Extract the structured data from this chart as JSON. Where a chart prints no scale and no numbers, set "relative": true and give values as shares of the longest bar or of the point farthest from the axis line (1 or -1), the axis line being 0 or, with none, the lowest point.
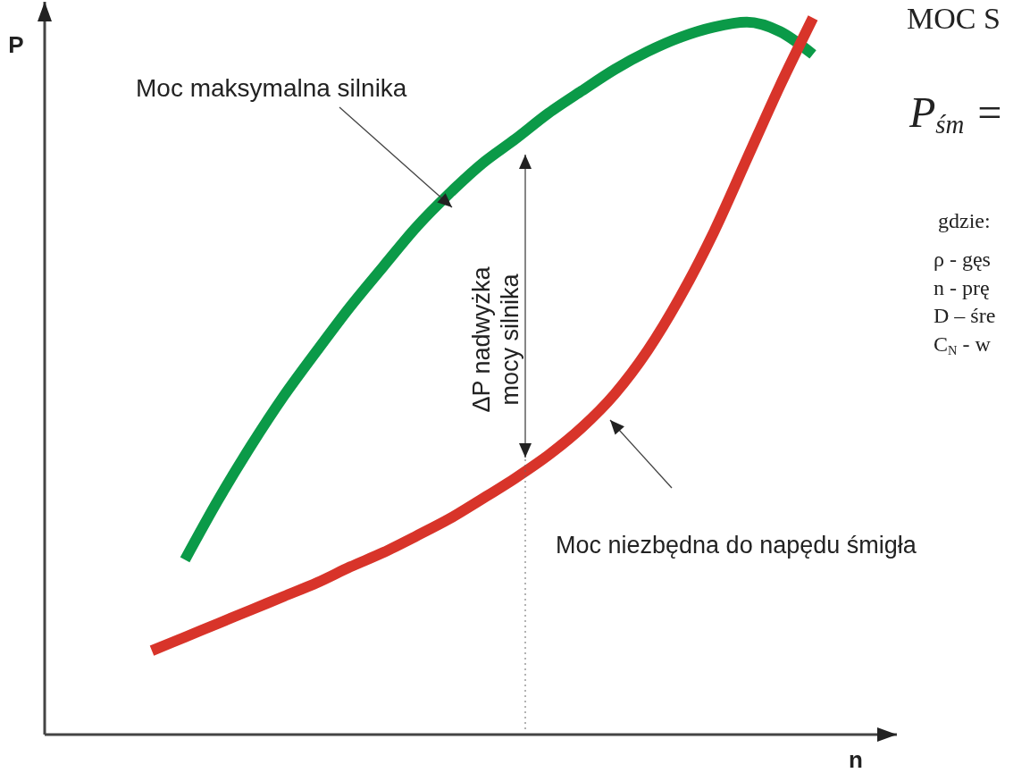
{
  "chart_data": {
    "type": "line",
    "relative": true,
    "xlabel": "n",
    "ylabel": "P",
    "categories": [
      null,
      null,
      null,
      null,
      null,
      null,
      null,
      null,
      null,
      null,
      null,
      null,
      null,
      null,
      null,
      null,
      null,
      null,
      null,
      null,
      null
    ],
    "series": [
      {
        "color": "#0b9a48",
        "values": [
          null,
          0.244,
          0.327,
          0.403,
          0.473,
          0.536,
          0.597,
          0.653,
          0.708,
          0.755,
          0.797,
          0.831,
          0.867,
          0.898,
          0.928,
          0.953,
          0.973,
          0.987,
          0.994,
          0.981,
          0.949
        ]
      },
      {
        "color": "#d8342a",
        "values": [
          0.117,
          0.136,
          0.155,
          0.174,
          0.193,
          0.212,
          0.234,
          0.254,
          0.277,
          0.301,
          0.329,
          0.358,
          0.39,
          0.428,
          0.475,
          0.536,
          0.612,
          0.701,
          0.803,
          0.905,
          1
        ]
      }
    ],
    "marker": "none",
    "line_style": "solid",
    "grid": false,
    "annotations": [
      "Moc maksymalna silnika",
      "ΔP nadwyżka\nmocy silnika",
      "Moc niezbędna do napędu śmigła",
      "MOC S",
      "P$_{śm}$ =",
      "gdzie:",
      "ρ - gęs",
      "n - prę",
      "D – śre",
      "C$_{N}$ - w"
    ]
  }
}
